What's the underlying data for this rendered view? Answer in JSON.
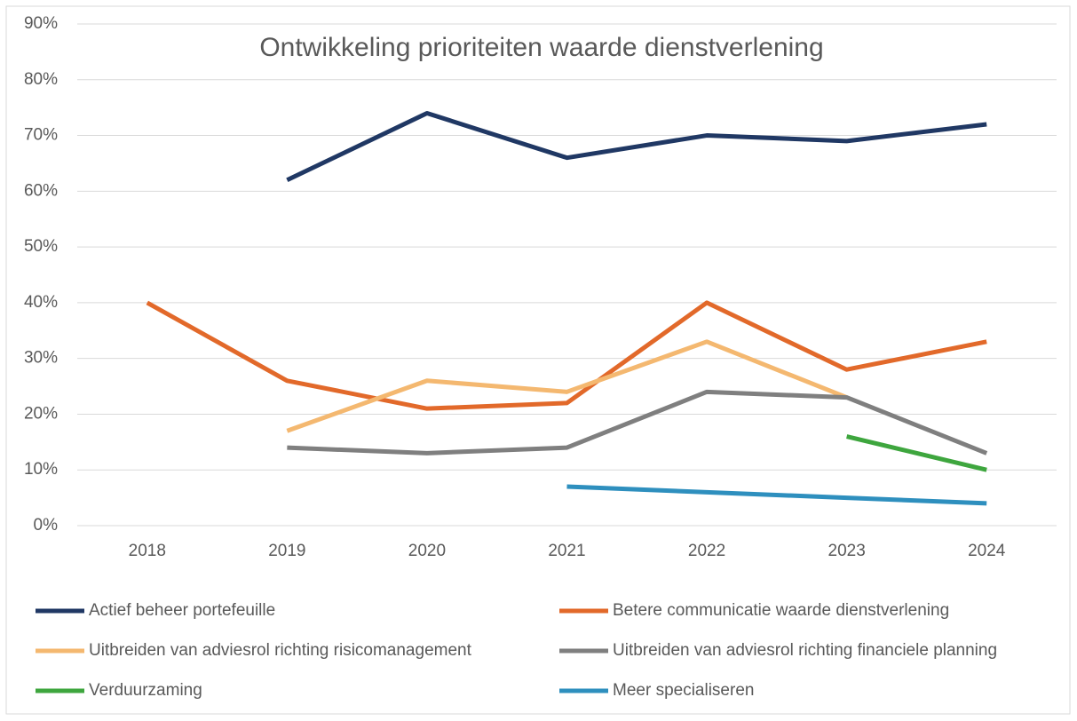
{
  "chart_data": {
    "type": "line",
    "title": "Ontwikkeling prioriteiten waarde dienstverlening",
    "categories": [
      "2018",
      "2019",
      "2020",
      "2021",
      "2022",
      "2023",
      "2024"
    ],
    "series": [
      {
        "name": "Actief beheer portefeuille",
        "color": "#203864",
        "values": [
          null,
          62,
          74,
          66,
          70,
          69,
          72
        ]
      },
      {
        "name": "Betere communicatie waarde dienstverlening",
        "color": "#e2692a",
        "values": [
          40,
          26,
          21,
          22,
          40,
          28,
          33
        ]
      },
      {
        "name": "Uitbreiden van adviesrol richting risicomanagement",
        "color": "#f4b870",
        "values": [
          null,
          17,
          26,
          24,
          33,
          23,
          null
        ]
      },
      {
        "name": "Uitbreiden van adviesrol richting financiele planning",
        "color": "#7f7f7f",
        "values": [
          null,
          14,
          13,
          14,
          24,
          23,
          13
        ]
      },
      {
        "name": "Verduurzaming",
        "color": "#3ea63e",
        "values": [
          null,
          null,
          null,
          null,
          null,
          16,
          10
        ]
      },
      {
        "name": "Meer specialiseren",
        "color": "#2e8fbe",
        "values": [
          null,
          null,
          null,
          7,
          6,
          5,
          4
        ]
      }
    ],
    "ylim": [
      0,
      90
    ],
    "yticks": [
      {
        "value": 0,
        "label": "0%"
      },
      {
        "value": 10,
        "label": "10%"
      },
      {
        "value": 20,
        "label": "20%"
      },
      {
        "value": 30,
        "label": "30%"
      },
      {
        "value": 40,
        "label": "40%"
      },
      {
        "value": 50,
        "label": "50%"
      },
      {
        "value": 60,
        "label": "60%"
      },
      {
        "value": 70,
        "label": "70%"
      },
      {
        "value": 80,
        "label": "80%"
      },
      {
        "value": 90,
        "label": "90%"
      }
    ],
    "grid": true
  }
}
